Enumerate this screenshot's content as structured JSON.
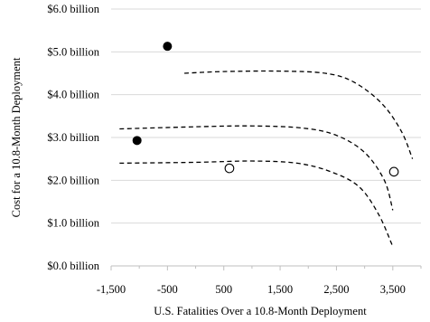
{
  "chart_data": {
    "type": "scatter",
    "xlabel": "U.S. Fatalities Over a 10.8-Month Deployment",
    "ylabel": "Cost for a  10.8-Month Deployment",
    "xlim": [
      -1500,
      4000
    ],
    "ylim": [
      0,
      6.0
    ],
    "x_ticks": [
      -1500,
      -500,
      500,
      1500,
      2500,
      3500
    ],
    "x_tick_labels": [
      "-1,500",
      "-500",
      "500",
      "1,500",
      "2,500",
      "3,500"
    ],
    "y_ticks": [
      0,
      1,
      2,
      3,
      4,
      5,
      6
    ],
    "y_tick_labels": [
      "$0.0 billion",
      "$1.0 billion",
      "$2.0 billion",
      "$3.0 billion",
      "$4.0 billion",
      "$5.0 billion",
      "$6.0 billion"
    ],
    "grid": "horizontal",
    "series": [
      {
        "marker": "filled-circle",
        "color": "#000000",
        "points": [
          [
            -500,
            5.13
          ],
          [
            -1040,
            2.93
          ]
        ]
      },
      {
        "marker": "open-circle",
        "color": "#000000",
        "points": [
          [
            600,
            2.28
          ],
          [
            3520,
            2.2
          ]
        ]
      }
    ],
    "curves": [
      {
        "style": "dashed",
        "points": [
          [
            -200,
            4.5
          ],
          [
            500,
            4.54
          ],
          [
            1500,
            4.55
          ],
          [
            2300,
            4.5
          ],
          [
            2800,
            4.3
          ],
          [
            3300,
            3.8
          ],
          [
            3650,
            3.15
          ],
          [
            3850,
            2.5
          ]
        ]
      },
      {
        "style": "dashed",
        "points": [
          [
            -1350,
            3.2
          ],
          [
            0,
            3.25
          ],
          [
            1000,
            3.27
          ],
          [
            1900,
            3.22
          ],
          [
            2500,
            3.05
          ],
          [
            3000,
            2.65
          ],
          [
            3350,
            2.0
          ],
          [
            3500,
            1.3
          ]
        ]
      },
      {
        "style": "dashed",
        "points": [
          [
            -1350,
            2.4
          ],
          [
            0,
            2.42
          ],
          [
            1000,
            2.45
          ],
          [
            1800,
            2.4
          ],
          [
            2400,
            2.2
          ],
          [
            2900,
            1.85
          ],
          [
            3250,
            1.2
          ],
          [
            3500,
            0.45
          ]
        ]
      }
    ]
  }
}
